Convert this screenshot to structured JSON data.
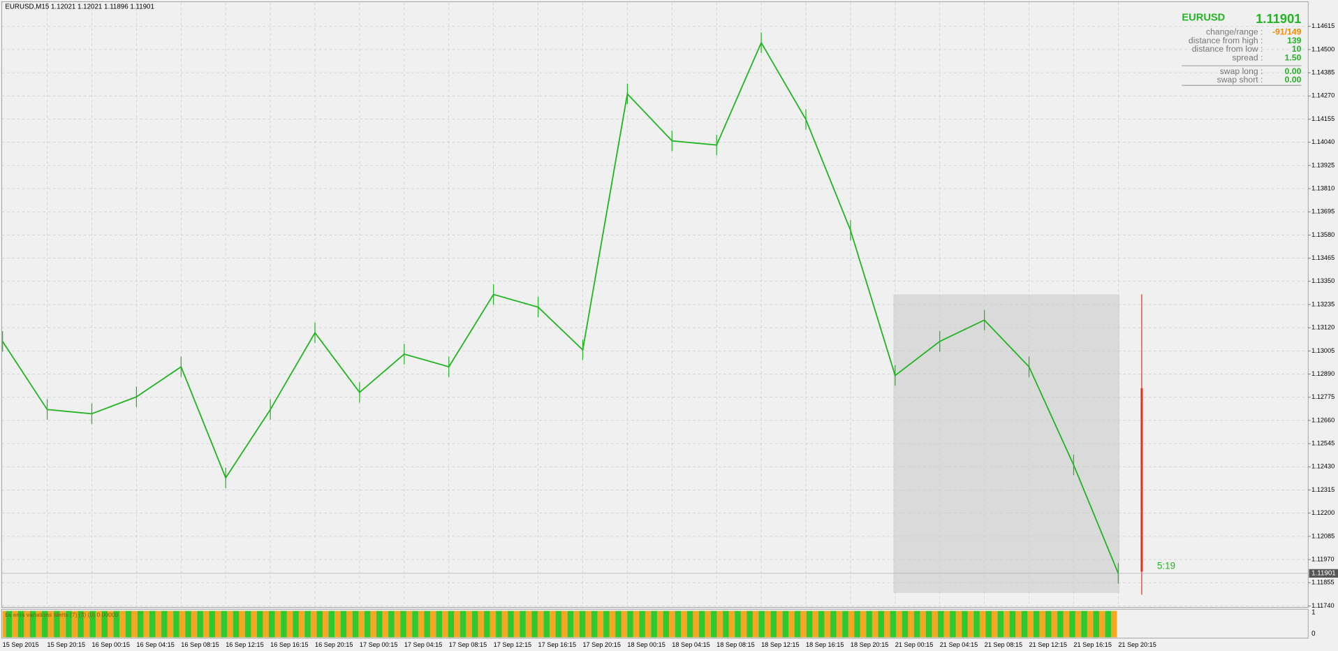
{
  "header": {
    "title": "EURUSD,M15  1.12021 1.12021 1.11896 1.11901"
  },
  "chart_data": {
    "type": "line",
    "categories": [
      "15 Sep 2015",
      "15 Sep 20:15",
      "16 Sep 00:15",
      "16 Sep 04:15",
      "16 Sep 08:15",
      "16 Sep 12:15",
      "16 Sep 16:15",
      "16 Sep 20:15",
      "17 Sep 00:15",
      "17 Sep 04:15",
      "17 Sep 08:15",
      "17 Sep 12:15",
      "17 Sep 16:15",
      "17 Sep 20:15",
      "18 Sep 00:15",
      "18 Sep 04:15",
      "18 Sep 08:15",
      "18 Sep 12:15",
      "18 Sep 16:15",
      "18 Sep 20:15",
      "21 Sep 00:15",
      "21 Sep 04:15",
      "21 Sep 08:15",
      "21 Sep 12:15",
      "21 Sep 16:15",
      "21 Sep 20:15"
    ],
    "series": [
      {
        "name": "EURUSD",
        "color": "#22b422",
        "values": [
          1.13052,
          1.12714,
          1.12693,
          1.12777,
          1.12926,
          1.12375,
          1.12714,
          1.13095,
          1.12799,
          1.12989,
          1.12926,
          1.13285,
          1.13222,
          1.1301,
          1.1428,
          1.14047,
          1.14026,
          1.14534,
          1.14153,
          1.13603,
          1.12883,
          1.13052,
          1.13158,
          1.12926,
          1.12439,
          1.11901
        ]
      }
    ],
    "ylim": [
      1.11732,
      1.14733
    ],
    "yticks": [
      {
        "value": 1.1174,
        "label": "1.11740"
      },
      1.11855,
      {
        "value": 1.1197,
        "label": "1.11970"
      },
      1.12085,
      {
        "value": 1.122,
        "label": "1.12200"
      },
      1.12315,
      {
        "value": 1.1243,
        "label": "1.12430"
      },
      1.12545,
      {
        "value": 1.1266,
        "label": "1.12660"
      },
      1.12775,
      {
        "value": 1.1289,
        "label": "1.12890"
      },
      {
        "value": 1.13005,
        "label": "1.13005"
      },
      {
        "value": 1.1312,
        "label": "1.13120"
      },
      1.13235,
      {
        "value": 1.1335,
        "label": "1.13350"
      },
      1.13465,
      {
        "value": 1.1358,
        "label": "1.13580"
      },
      1.13695,
      {
        "value": 1.1381,
        "label": "1.13810"
      },
      1.13925,
      {
        "value": 1.1404,
        "label": "1.14040"
      },
      1.14155,
      {
        "value": 1.1427,
        "label": "1.14270"
      },
      1.14385,
      {
        "value": 1.145,
        "label": "1.14500"
      },
      1.14615
    ],
    "grid": true
  },
  "price_tag": "1.11901",
  "timer": "5:19",
  "indicator": {
    "label": "bs ema variations alerts (7) (3) (0) 0.00000",
    "ticks": [
      "1",
      "0"
    ]
  },
  "info_panel": {
    "symbol": "EURUSD",
    "price": "1.11901",
    "rows": [
      {
        "label": "change/range :",
        "value": "-91/149",
        "color": "#f08c00"
      },
      {
        "label": "distance from high :",
        "value": "139",
        "color": "#22b422"
      },
      {
        "label": "distance from low :",
        "value": "10",
        "color": "#22b422"
      },
      {
        "label": "spread :",
        "value": "1.50",
        "color": "#22b422"
      },
      {
        "label": "swap long :",
        "value": "0.00",
        "color": "#22b422"
      },
      {
        "label": "swap short :",
        "value": "0.00",
        "color": "#22b422"
      }
    ]
  }
}
